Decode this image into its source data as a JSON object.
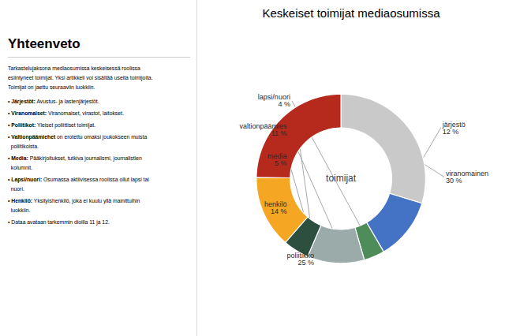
{
  "chart_data": {
    "type": "pie",
    "title": "Keskeiset toimijat mediaosumissa",
    "categories": [
      "viranomainen",
      "järjestö",
      "lapsi/nuori",
      "valtionpäämies",
      "media",
      "henkilö",
      "poliitikko"
    ],
    "values": [
      30,
      12,
      4,
      11,
      5,
      14,
      25
    ],
    "value_labels": [
      "30 %",
      "12 %",
      "4 %",
      "11 %",
      "5 %",
      "14 %",
      "25 %"
    ],
    "colors": [
      "#c9c9c9",
      "#4472c4",
      "#4e8c5a",
      "#9aabaa",
      "#2d4f40",
      "#f5a623",
      "#b52a1c"
    ],
    "data_labels": true,
    "annotations": {
      "center": "toimijat",
      "heading": "Yhteenveto",
      "lines": [
        "Tarkastelujaksona mediaosumissa keskeisessä roolissa",
        "esiintyneet toimijat. Yksi artikkeli voi sisältää useita toimijoita.",
        "Toimijat on jaettu seuraaviin luokkiin."
      ],
      "bullets": [
        {
          "bold": "• Järjestöt:",
          "text": [
            " Avustus- ja lastenjärjestöt."
          ]
        },
        {
          "bold": "• Viranomaiset:",
          "text": [
            " Viranomaiset, virastot, laitokset."
          ]
        },
        {
          "bold": "• Poliitikot:",
          "text": [
            " Yleiset poliittiset toimijat."
          ]
        },
        {
          "bold": "• Valtionpäämiehet",
          "text": [
            " on erotettu omaksi joukokseen muista",
            "  poliitikoista."
          ]
        },
        {
          "bold": "• Media:",
          "text": [
            " Pääkirjoitukset, tutkiva journalismi, journalistien",
            "  kolumnit."
          ]
        },
        {
          "bold": "• Lapsi/nuori:",
          "text": [
            " Osumassa aktiivisessa roolissa ollut lapsi tai",
            "  nuori."
          ]
        },
        {
          "bold": "• Henkilö:",
          "text": [
            " Yksityishenkilö, joka ei kuulu yllä mainittuihin",
            "  luokkiin."
          ]
        },
        {
          "text": [
            "• Dataa avataan tarkemmin dioilla 11 ja 12."
          ]
        }
      ]
    }
  }
}
